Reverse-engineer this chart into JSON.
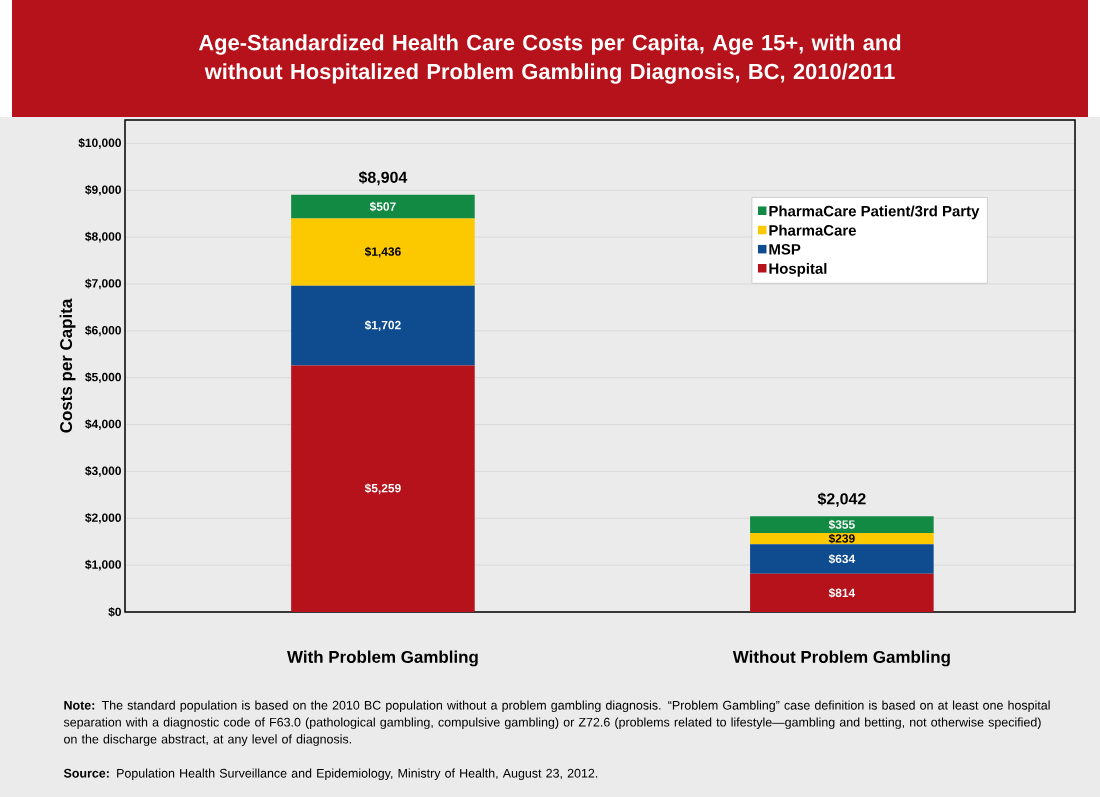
{
  "chart_data": {
    "type": "bar",
    "stacked": true,
    "title": "Age-Standardized Health Care Costs per Capita, Age 15+, with and without Hospitalized Problem Gambling Diagnosis, BC, 2010/2011",
    "ylabel": "Costs per Capita",
    "categories": [
      "With Problem Gambling",
      "Without Problem Gambling"
    ],
    "series": [
      {
        "name": "Hospital",
        "color": "#b5121b",
        "values": [
          5259,
          814
        ],
        "value_labels": [
          "$5,259",
          "$814"
        ]
      },
      {
        "name": "MSP",
        "color": "#0f4c8f",
        "values": [
          1702,
          634
        ],
        "value_labels": [
          "$1,702",
          "$634"
        ]
      },
      {
        "name": "PharmaCare",
        "color": "#fcc800",
        "values": [
          1436,
          239
        ],
        "value_labels": [
          "$1,436",
          "$239"
        ]
      },
      {
        "name": "PharmaCare Patient/3rd Party",
        "color": "#138a43",
        "values": [
          507,
          355
        ],
        "value_labels": [
          "$507",
          "$355"
        ]
      }
    ],
    "totals": [
      "$8,904",
      "$2,042"
    ],
    "ylim": [
      0,
      10500
    ],
    "yticks": [
      {
        "value": 0,
        "label": "$0"
      },
      {
        "value": 1000,
        "label": "$1,000"
      },
      {
        "value": 2000,
        "label": "$2,000"
      },
      {
        "value": 3000,
        "label": "$3,000"
      },
      {
        "value": 4000,
        "label": "$4,000"
      },
      {
        "value": 5000,
        "label": "$5,000"
      },
      {
        "value": 6000,
        "label": "$6,000"
      },
      {
        "value": 7000,
        "label": "$7,000"
      },
      {
        "value": 8000,
        "label": "$8,000"
      },
      {
        "value": 9000,
        "label": "$9,000"
      },
      {
        "value": 10000,
        "label": "$10,000"
      }
    ],
    "grid": "y",
    "legend": "top right",
    "annotations": [
      "**Note:** The standard population is based on the 2010 BC population without a problem gambling diagnosis. “Problem Gambling” case definition is based on at least one hospital separation with a diagnostic code of F63.0 (pathological gambling, compulsive gambling) or Z72.6 (problems related to lifestyle—gambling and betting, not otherwise specified) on the discharge abstract, at any level of diagnosis.",
      "**Source:** Population Health Surveillance and Epidemiology, Ministry of Health, August 23, 2012."
    ]
  }
}
